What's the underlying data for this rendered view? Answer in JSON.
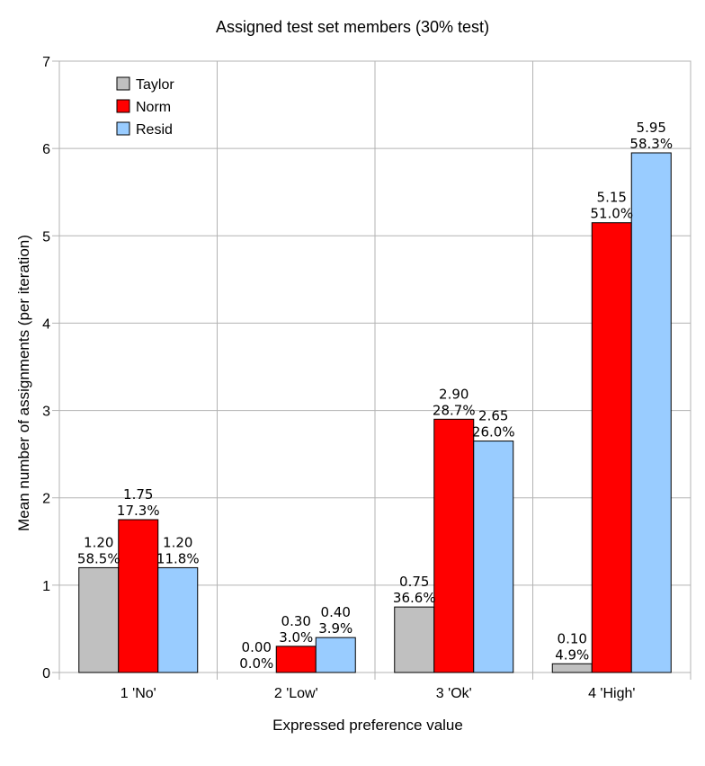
{
  "chart_data": {
    "type": "bar",
    "title": "Assigned test set members (30% test)",
    "xlabel": "Expressed preference value",
    "ylabel": "Mean number of assignments (per iteration)",
    "ylim": [
      0,
      7
    ],
    "yticks": [
      0,
      1,
      2,
      3,
      4,
      5,
      6,
      7
    ],
    "ytick_labels": [
      "0",
      "1",
      "2",
      "3",
      "4",
      "5",
      "6",
      "7"
    ],
    "grid": true,
    "legend_position": "top-left",
    "categories": [
      "1 'No'",
      "2 'Low'",
      "3 'Ok'",
      "4 'High'"
    ],
    "series": [
      {
        "name": "Taylor",
        "color": "#c0c0c0",
        "values": [
          1.2,
          0.0,
          0.75,
          0.1
        ],
        "labels": [
          "1.20",
          "0.00",
          "0.75",
          "0.10"
        ],
        "percents": [
          "58.5%",
          "0.0%",
          "36.6%",
          "4.9%"
        ]
      },
      {
        "name": "Norm",
        "color": "#ff0000",
        "values": [
          1.75,
          0.3,
          2.9,
          5.15
        ],
        "labels": [
          "1.75",
          "0.30",
          "2.90",
          "5.15"
        ],
        "percents": [
          "17.3%",
          "3.0%",
          "28.7%",
          "51.0%"
        ]
      },
      {
        "name": "Resid",
        "color": "#99ccff",
        "values": [
          1.2,
          0.4,
          2.65,
          5.95
        ],
        "labels": [
          "1.20",
          "0.40",
          "2.65",
          "5.95"
        ],
        "percents": [
          "11.8%",
          "3.9%",
          "26.0%",
          "58.3%"
        ]
      }
    ]
  }
}
